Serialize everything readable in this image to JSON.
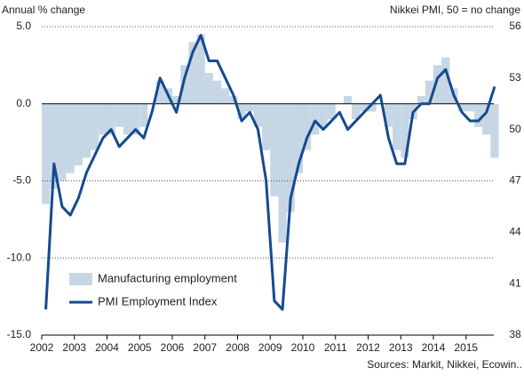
{
  "chart_data": {
    "type": "combo",
    "left_axis_title": "Annual % change",
    "right_axis_title": "Nikkei PMI, 50 = no change",
    "source": "Sources: Markit, Nikkei, Ecowin..",
    "x": [
      2002,
      2002.25,
      2002.5,
      2002.75,
      2003,
      2003.25,
      2003.5,
      2003.75,
      2004,
      2004.25,
      2004.5,
      2004.75,
      2005,
      2005.25,
      2005.5,
      2005.75,
      2006,
      2006.25,
      2006.5,
      2006.75,
      2007,
      2007.25,
      2007.5,
      2007.75,
      2008,
      2008.25,
      2008.5,
      2008.75,
      2009,
      2009.25,
      2009.5,
      2009.75,
      2010,
      2010.25,
      2010.5,
      2010.75,
      2011,
      2011.25,
      2011.5,
      2011.75,
      2012,
      2012.25,
      2012.5,
      2012.75,
      2013,
      2013.25,
      2013.5,
      2013.75,
      2014,
      2014.25,
      2014.5,
      2014.75,
      2015,
      2015.25,
      2015.5,
      2015.75
    ],
    "xlim": [
      2002,
      2015.85
    ],
    "xticks": [
      2002,
      2003,
      2004,
      2005,
      2006,
      2007,
      2008,
      2009,
      2010,
      2011,
      2012,
      2013,
      2014,
      2015
    ],
    "ylim": [
      -15,
      5
    ],
    "yticks": [
      {
        "value": 5,
        "label": "5.0"
      },
      {
        "value": 0,
        "label": "0.0"
      },
      {
        "value": -5,
        "label": "-5.0"
      },
      {
        "value": -10,
        "label": "-10.0"
      },
      {
        "value": -15,
        "label": "-15.0"
      }
    ],
    "y2lim": [
      38,
      56
    ],
    "y2ticks": [
      56,
      53,
      50,
      47,
      44,
      41,
      38
    ],
    "grid": true,
    "legend": "lower-left",
    "series": [
      {
        "name": "Manufacturing employment",
        "type": "bar",
        "color": "#c6d6e5",
        "values": [
          -6.5,
          -5.5,
          -5,
          -4.5,
          -4,
          -3.5,
          -3,
          -2,
          -2,
          -1.5,
          -2,
          -2,
          -1.5,
          0,
          1.5,
          1,
          0.5,
          2.5,
          4,
          4.5,
          2,
          1.5,
          1,
          0.5,
          -1,
          -0.5,
          -1.5,
          -3,
          -6,
          -9,
          -7,
          -4.5,
          -3,
          -2,
          -1.5,
          -1,
          0,
          0.5,
          -1,
          -0.5,
          -0.5,
          0,
          -1.5,
          -3,
          -3.5,
          -1,
          0.5,
          1.5,
          2.5,
          3,
          1,
          -0.5,
          -0.5,
          -1.5,
          -2,
          -3.5
        ]
      },
      {
        "name": "PMI Employment Index",
        "type": "line",
        "axis": "y2",
        "color": "#154a8f",
        "values": [
          39.5,
          48,
          45.5,
          45,
          46,
          47.5,
          48.5,
          49.5,
          50,
          49,
          49.5,
          50,
          49.5,
          51,
          53,
          52,
          51,
          53,
          54.5,
          55.5,
          54,
          54,
          53,
          52,
          50.5,
          51,
          50,
          47,
          40,
          39.5,
          46,
          48,
          49.5,
          50.5,
          50,
          50.5,
          51,
          50,
          50.5,
          51,
          51.5,
          52,
          49.5,
          48,
          48,
          51,
          51.5,
          51.5,
          53,
          53.5,
          52,
          51,
          50.5,
          50.5,
          51,
          52.5
        ]
      }
    ]
  }
}
